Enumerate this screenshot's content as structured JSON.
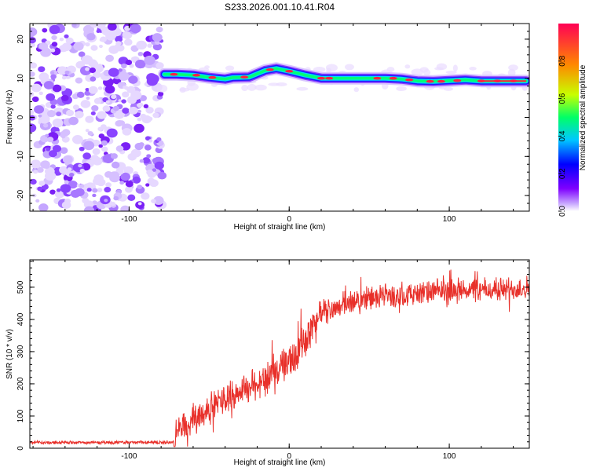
{
  "title": "S233.2026.001.10.41.R04",
  "colors": {
    "snr_line": "#e8302a",
    "colorbar": [
      "#ffffff",
      "#c8a8ff",
      "#7f00ff",
      "#0000ff",
      "#00c8ff",
      "#00ff66",
      "#c8ff00",
      "#ff8800",
      "#ff0055"
    ]
  },
  "chart_data": [
    {
      "type": "heatmap",
      "xlabel": "Height of straight line (km)",
      "ylabel": "Frequency (Hz)",
      "xlim": [
        -162,
        150
      ],
      "ylim": [
        -24,
        24
      ],
      "xticks": [
        -100,
        0,
        100
      ],
      "yticks": [
        -20,
        -10,
        0,
        10,
        20
      ],
      "noise_region_x": [
        -162,
        -79
      ],
      "signal_start_x": -79,
      "ridge": [
        [
          -78,
          11
        ],
        [
          -70,
          11
        ],
        [
          -60,
          10.8
        ],
        [
          -50,
          10.2
        ],
        [
          -40,
          9.8
        ],
        [
          -35,
          10.2
        ],
        [
          -25,
          10.3
        ],
        [
          -15,
          12
        ],
        [
          -8,
          12.5
        ],
        [
          0,
          11.8
        ],
        [
          10,
          10.8
        ],
        [
          20,
          10
        ],
        [
          30,
          10
        ],
        [
          40,
          10
        ],
        [
          50,
          10
        ],
        [
          60,
          10
        ],
        [
          70,
          9.8
        ],
        [
          80,
          9.3
        ],
        [
          90,
          9.2
        ],
        [
          100,
          9.4
        ],
        [
          110,
          9.6
        ],
        [
          120,
          9.3
        ],
        [
          130,
          9.3
        ],
        [
          140,
          9.3
        ],
        [
          148,
          9.3
        ]
      ],
      "colorbar": {
        "label": "Normalized spectral amplitude",
        "range": [
          0,
          1
        ],
        "ticks": [
          0.0,
          0.2,
          0.4,
          0.6,
          0.8
        ]
      }
    },
    {
      "type": "line",
      "xlabel": "Height of straight line (km)",
      "ylabel": "SNR (10 * v/v)",
      "xlim": [
        -162,
        150
      ],
      "ylim": [
        0,
        585
      ],
      "xticks": [
        -100,
        0,
        100
      ],
      "yticks": [
        0,
        100,
        200,
        300,
        400,
        500
      ],
      "series": [
        {
          "x": [
            -162,
            -140,
            -120,
            -100,
            -80,
            -72,
            -70,
            -65,
            -60,
            -55,
            -50,
            -45,
            -40,
            -35,
            -30,
            -25,
            -20,
            -15,
            -10,
            -5,
            0,
            5,
            10,
            15,
            20,
            30,
            40,
            50,
            60,
            70,
            80,
            90,
            100,
            110,
            120,
            130,
            140,
            150
          ],
          "values": [
            18,
            18,
            18,
            18,
            18,
            18,
            60,
            75,
            90,
            110,
            120,
            140,
            155,
            170,
            180,
            190,
            205,
            215,
            230,
            250,
            265,
            300,
            340,
            380,
            420,
            440,
            455,
            465,
            470,
            475,
            480,
            485,
            490,
            492,
            490,
            492,
            495,
            500
          ]
        }
      ]
    }
  ]
}
